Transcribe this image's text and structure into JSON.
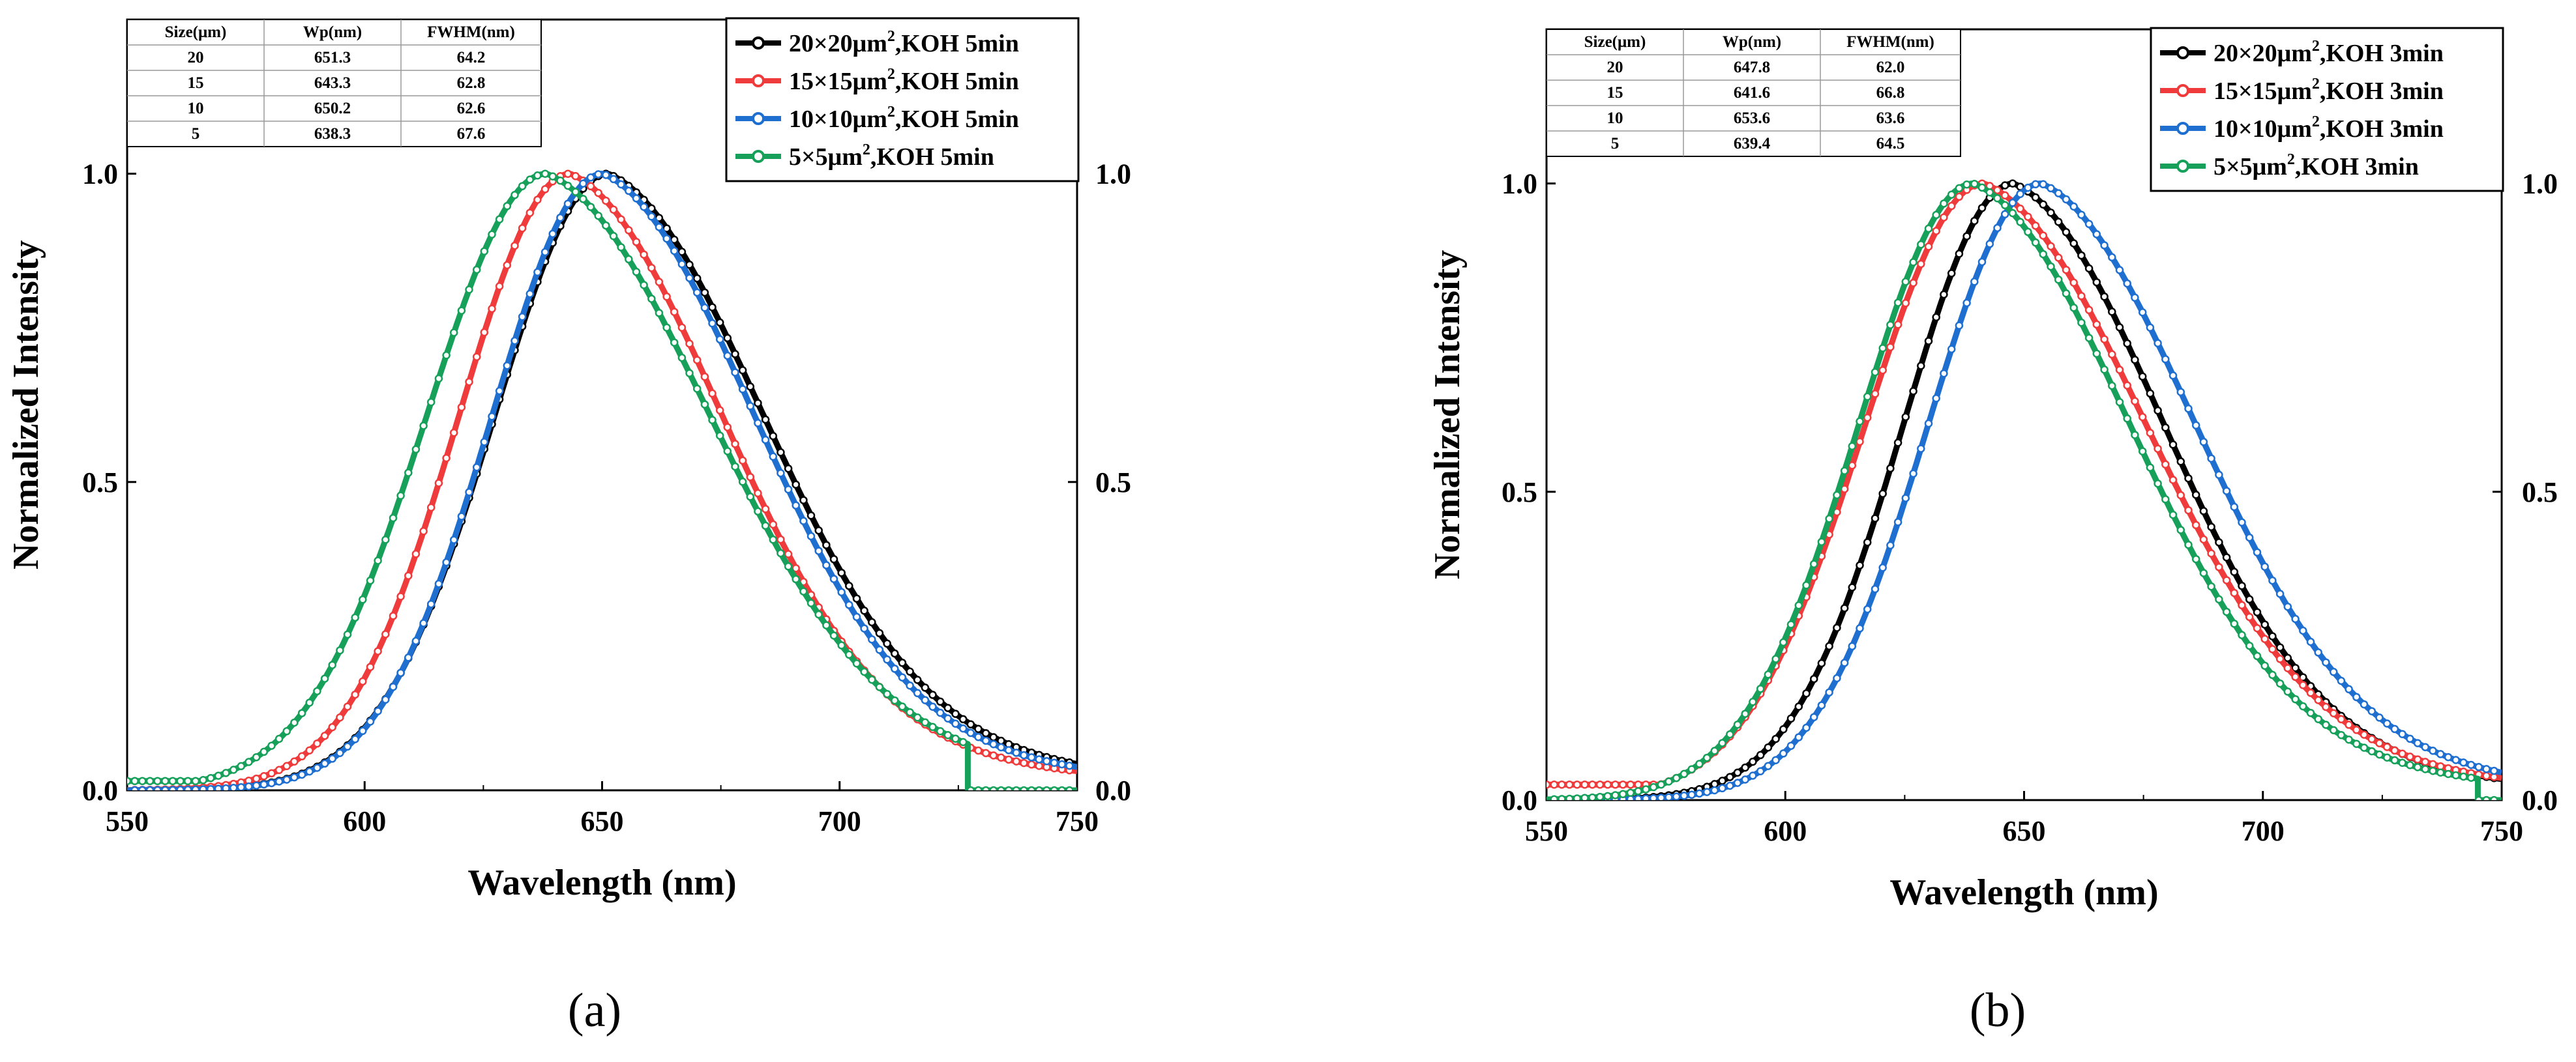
{
  "colors": {
    "black": "#000000",
    "red": "#ef3b3b",
    "blue": "#1f6fd1",
    "green": "#16a05a"
  },
  "chart_data": [
    {
      "panel": "a",
      "panel_label": "(a)",
      "type": "line",
      "xlabel": "Wavelength (nm)",
      "ylabel": "Normalized Intensity",
      "xlim": [
        550,
        750
      ],
      "ylim": [
        0,
        1.25
      ],
      "x_ticks": [
        "550",
        "600",
        "650",
        "700",
        "750"
      ],
      "y_ticks": [
        "0.0",
        "0.5",
        "1.0"
      ],
      "y_ticks_right": [
        "0.0",
        "0.5",
        "1.0"
      ],
      "legend_position": "top-right",
      "series": [
        {
          "name_main": "20×20μm",
          "name_tail": ",KOH 5min",
          "color": "black",
          "peak": 651.3,
          "fwhm": 64.2,
          "tail_min": 0,
          "cut_at": null
        },
        {
          "name_main": "15×15μm",
          "name_tail": ",KOH 5min",
          "color": "red",
          "peak": 643.3,
          "fwhm": 62.8,
          "tail_min": 0,
          "cut_at": null
        },
        {
          "name_main": "10×10μm",
          "name_tail": ",KOH 5min",
          "color": "blue",
          "peak": 650.2,
          "fwhm": 62.6,
          "tail_min": 0,
          "cut_at": null
        },
        {
          "name_main": "5×5μm",
          "name_tail": ",KOH 5min",
          "color": "green",
          "peak": 638.3,
          "fwhm": 67.6,
          "tail_min": 0.015,
          "cut_at": 727
        }
      ],
      "table": {
        "headers": [
          "Size(μm)",
          "Wp(nm)",
          "FWHM(nm)"
        ],
        "rows": [
          [
            "20",
            "651.3",
            "64.2"
          ],
          [
            "15",
            "643.3",
            "62.8"
          ],
          [
            "10",
            "650.2",
            "62.6"
          ],
          [
            "5",
            "638.3",
            "67.6"
          ]
        ]
      }
    },
    {
      "panel": "b",
      "panel_label": "(b)",
      "type": "line",
      "xlabel": "Wavelength (nm)",
      "ylabel": "Normalized Intensity",
      "xlim": [
        550,
        750
      ],
      "ylim": [
        0,
        1.25
      ],
      "x_ticks": [
        "550",
        "600",
        "650",
        "700",
        "750"
      ],
      "y_ticks": [
        "0.0",
        "0.5",
        "1.0"
      ],
      "y_ticks_right": [
        "0.0",
        "0.5",
        "1.0"
      ],
      "legend_position": "top-right",
      "series": [
        {
          "name_main": "20×20μm",
          "name_tail": ",KOH 3min",
          "color": "black",
          "peak": 647.8,
          "fwhm": 62.0,
          "tail_min": 0,
          "cut_at": null
        },
        {
          "name_main": "15×15μm",
          "name_tail": ",KOH 3min",
          "color": "red",
          "peak": 641.6,
          "fwhm": 66.8,
          "tail_min": 0.025,
          "cut_at": null
        },
        {
          "name_main": "10×10μm",
          "name_tail": ",KOH 3min",
          "color": "blue",
          "peak": 653.6,
          "fwhm": 63.6,
          "tail_min": 0,
          "cut_at": null
        },
        {
          "name_main": "5×5μm",
          "name_tail": ",KOH 3min",
          "color": "green",
          "peak": 639.4,
          "fwhm": 64.5,
          "tail_min": 0,
          "cut_at": 745
        }
      ],
      "table": {
        "headers": [
          "Size(μm)",
          "Wp(nm)",
          "FWHM(nm)"
        ],
        "rows": [
          [
            "20",
            "647.8",
            "62.0"
          ],
          [
            "15",
            "641.6",
            "66.8"
          ],
          [
            "10",
            "653.6",
            "63.6"
          ],
          [
            "5",
            "639.4",
            "64.5"
          ]
        ]
      }
    }
  ]
}
